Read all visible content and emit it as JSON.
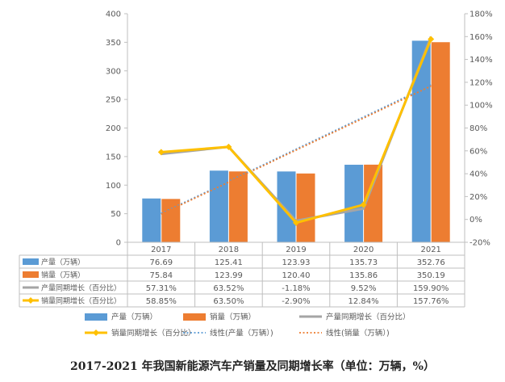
{
  "caption": "2017-2021 年我国新能源汽车产销量及同期增长率（单位：万辆，%）",
  "chart_data": {
    "type": "bar",
    "categories": [
      "2017",
      "2018",
      "2019",
      "2020",
      "2021"
    ],
    "series": [
      {
        "name": "产量（万辆）",
        "kind": "bar",
        "axis": "left",
        "color": "#5B9BD5",
        "values": [
          76.69,
          125.41,
          123.93,
          135.73,
          352.76
        ],
        "table": [
          "76.69",
          "125.41",
          "123.93",
          "135.73",
          "352.76"
        ]
      },
      {
        "name": "销量（万辆）",
        "kind": "bar",
        "axis": "left",
        "color": "#ED7D31",
        "values": [
          75.84,
          123.99,
          120.4,
          135.86,
          350.19
        ],
        "table": [
          "75.84",
          "123.99",
          "120.40",
          "135.86",
          "350.19"
        ]
      },
      {
        "name": "产量同期增长（百分比）",
        "kind": "line",
        "axis": "right",
        "color": "#A5A5A5",
        "values": [
          57.31,
          63.52,
          -1.18,
          9.52,
          159.9
        ],
        "table": [
          "57.31%",
          "63.52%",
          "-1.18%",
          "9.52%",
          "159.90%"
        ]
      },
      {
        "name": "销量同期增长（百分比）",
        "kind": "line",
        "axis": "right",
        "color": "#FFC000",
        "marker": true,
        "values": [
          58.85,
          63.5,
          -2.9,
          12.84,
          157.76
        ],
        "table": [
          "58.85%",
          "63.50%",
          "-2.90%",
          "12.84%",
          "157.76%"
        ]
      }
    ],
    "trendlines": [
      {
        "name": "线性(产量（万辆）)",
        "color": "#5B9BD5",
        "of": "产量（万辆）"
      },
      {
        "name": "线性(销量（万辆）)",
        "color": "#ED7D31",
        "of": "销量（万辆）"
      }
    ],
    "left_axis": {
      "min": 0,
      "max": 400,
      "step": 50,
      "ticks": [
        "0",
        "50",
        "100",
        "150",
        "200",
        "250",
        "300",
        "350",
        "400"
      ]
    },
    "right_axis": {
      "min": -20,
      "max": 180,
      "step": 20,
      "ticks": [
        "-20%",
        "0%",
        "20%",
        "40%",
        "60%",
        "80%",
        "100%",
        "120%",
        "140%",
        "160%",
        "180%"
      ]
    },
    "grid": false,
    "legend_position": "bottom",
    "data_table": true
  }
}
